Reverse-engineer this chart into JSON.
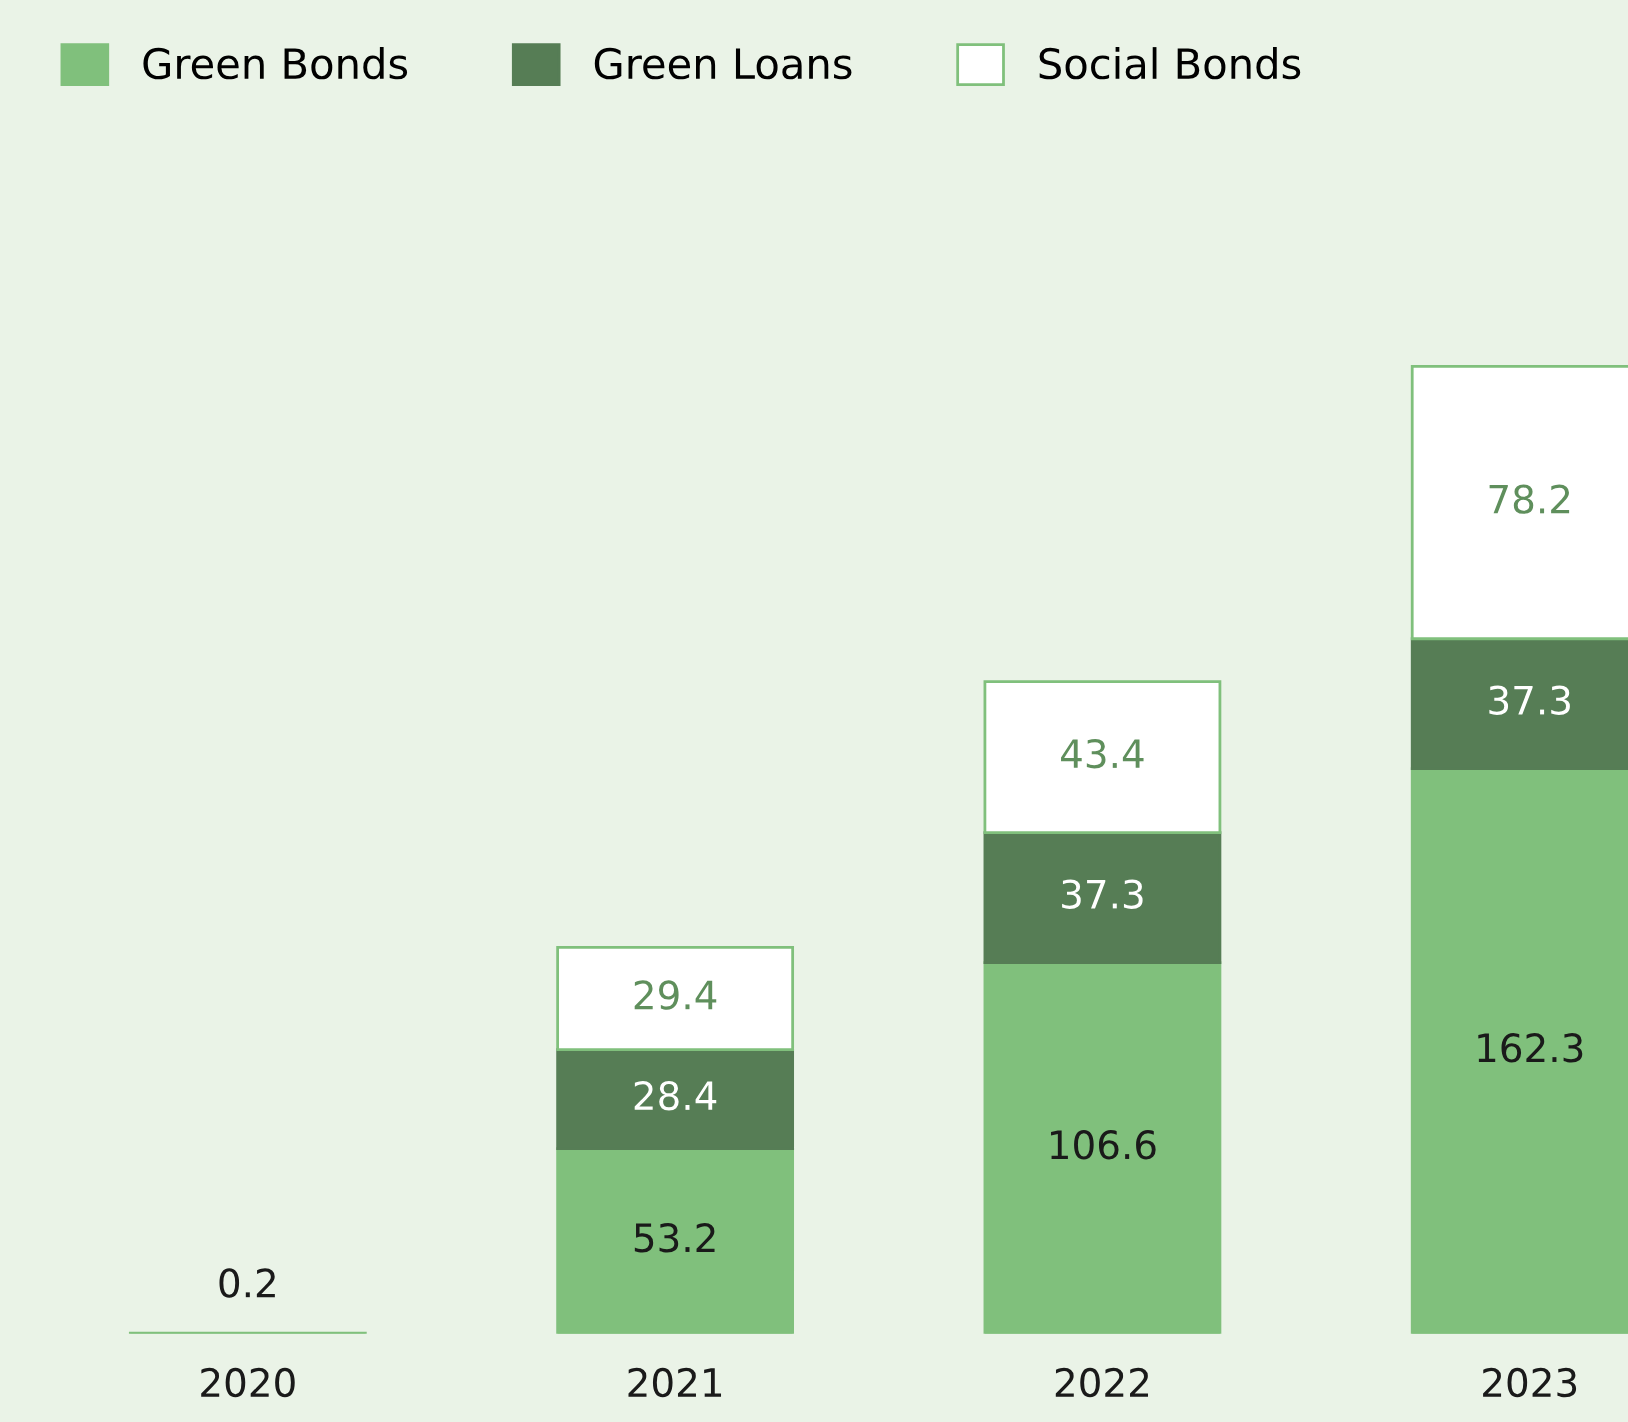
{
  "chart_data": {
    "type": "bar",
    "stacked": true,
    "categories": [
      "2020",
      "2021",
      "2022",
      "2023"
    ],
    "series": [
      {
        "name": "Green Bonds",
        "color": "#80c07c",
        "values": [
          0.2,
          53.2,
          106.6,
          162.3
        ]
      },
      {
        "name": "Green Loans",
        "color": "#567d55",
        "values": [
          null,
          28.4,
          37.3,
          37.3
        ]
      },
      {
        "name": "Social Bonds",
        "color": "#ffffff",
        "values": [
          null,
          29.4,
          43.4,
          78.2
        ]
      }
    ],
    "data_labels": true,
    "legend": "top left",
    "grid": false
  }
}
